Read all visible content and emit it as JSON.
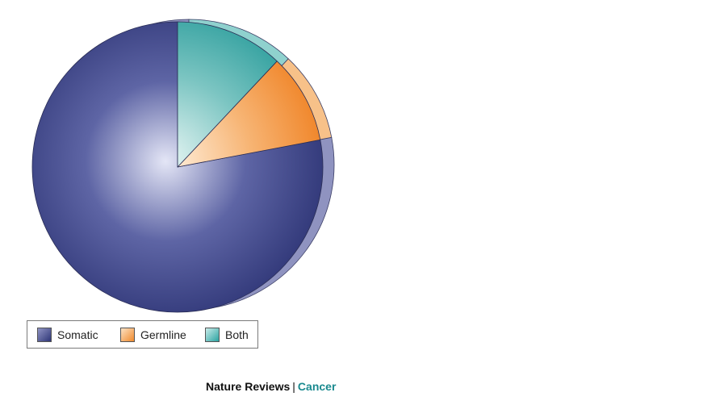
{
  "chart_data": {
    "type": "pie",
    "title": "",
    "slices": [
      {
        "label": "Somatic",
        "value": 78,
        "color": "#2e3577"
      },
      {
        "label": "Germline",
        "value": 10,
        "color": "#f08a2c"
      },
      {
        "label": "Both",
        "value": 12,
        "color": "#2aa3a1"
      }
    ],
    "start": "top",
    "direction": "counterclockwise",
    "style": "3d-shaded",
    "legend_position": "bottom-left"
  },
  "footer": {
    "journal": "Nature Reviews",
    "separator": "|",
    "subjournal": "Cancer"
  }
}
